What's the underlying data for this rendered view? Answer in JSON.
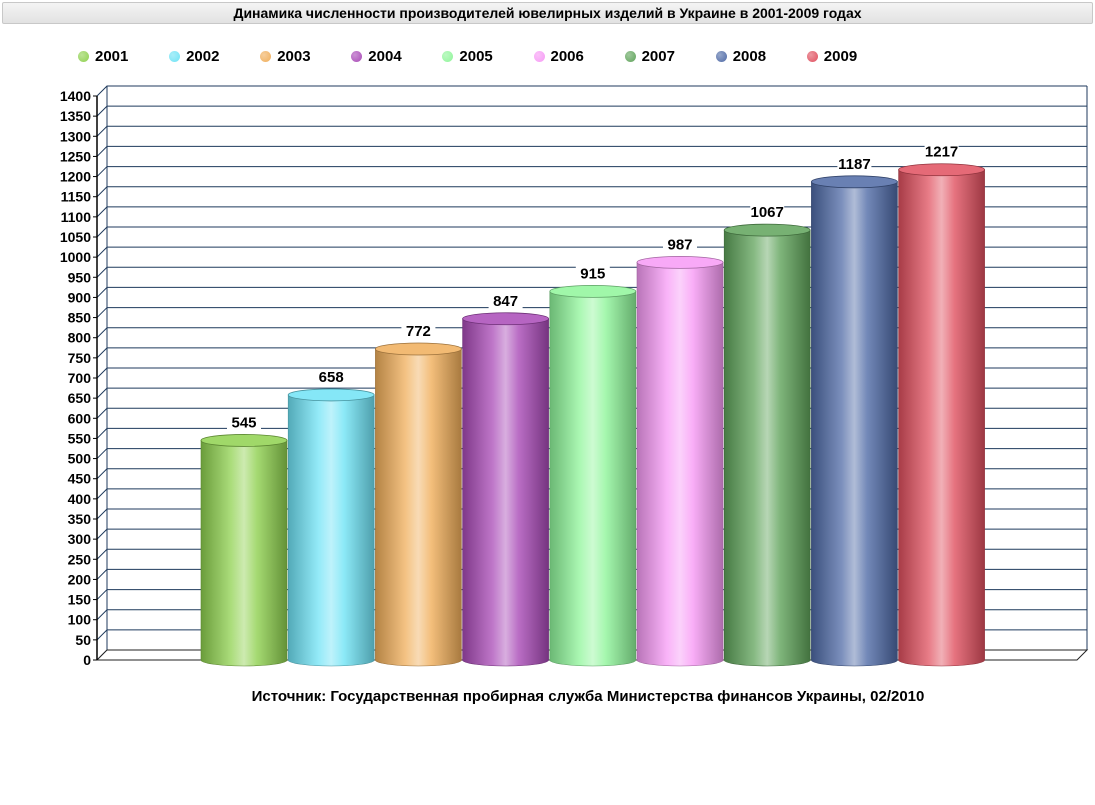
{
  "chart_data": {
    "type": "bar",
    "title": "Динамика численности производителей ювелирных изделий в Украине в 2001-2009 годах",
    "categories": [
      "2001",
      "2002",
      "2003",
      "2004",
      "2005",
      "2006",
      "2007",
      "2008",
      "2009"
    ],
    "values": [
      545,
      658,
      772,
      847,
      915,
      987,
      1067,
      1187,
      1217
    ],
    "colors": [
      "#8fd14f",
      "#6fe3f5",
      "#f0ae5a",
      "#a94ab7",
      "#8ff59a",
      "#f79af5",
      "#5fa35a",
      "#4f6aa6",
      "#e0505f"
    ],
    "ylim": [
      0,
      1400
    ],
    "ytick_step": 50,
    "legend_position": "top",
    "grid": true,
    "source": "Источник: Государственная пробирная служба Министерства финансов Украины, 02/2010"
  }
}
